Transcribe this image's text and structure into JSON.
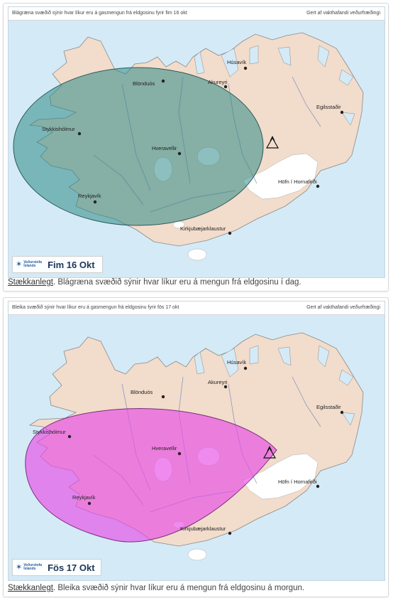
{
  "panels": [
    {
      "header_left": "Blágræna svæðið sýnir hvar líkur eru á gasmengun frá eldgosinu fyrir fim 16 okt",
      "header_right": "Gert af vakthafandi veðurfræðingi",
      "date_label": "Fim 16 Okt",
      "plume_color": "#2d8a86",
      "caption_link": "Stækkanlegt",
      "caption_text": ". Blágræna svæðið sýnir hvar líkur eru á mengun frá eldgosinu í dag."
    },
    {
      "header_left": "Bleika svæðið sýnir hvar líkur eru á gasmengun frá eldgosinu fyrir fös 17 okt",
      "header_right": "Gert af vakthafandi veðurfræðingi",
      "date_label": "Fös 17 Okt",
      "plume_color": "#e64ce6",
      "caption_link": "Stækkanlegt",
      "caption_text": ". Bleika svæðið sýnir hvar líkur eru á mengun frá eldgosinu á morgun."
    }
  ],
  "towns": [
    "Húsavík",
    "Blönduós",
    "Akureyri",
    "Egilsstaðir",
    "Stykkishólmur",
    "Hveravellir",
    "Höfn í Hornafirði",
    "Reykjavík",
    "Kirkjubæjarklaustur"
  ],
  "logo_text": [
    "Veðurstofa",
    "Íslands"
  ],
  "colors": {
    "sea": "#d4eaf7",
    "land": "#f2dccb",
    "glacier": "#ffffff",
    "rivers": "#7d8fbf"
  }
}
